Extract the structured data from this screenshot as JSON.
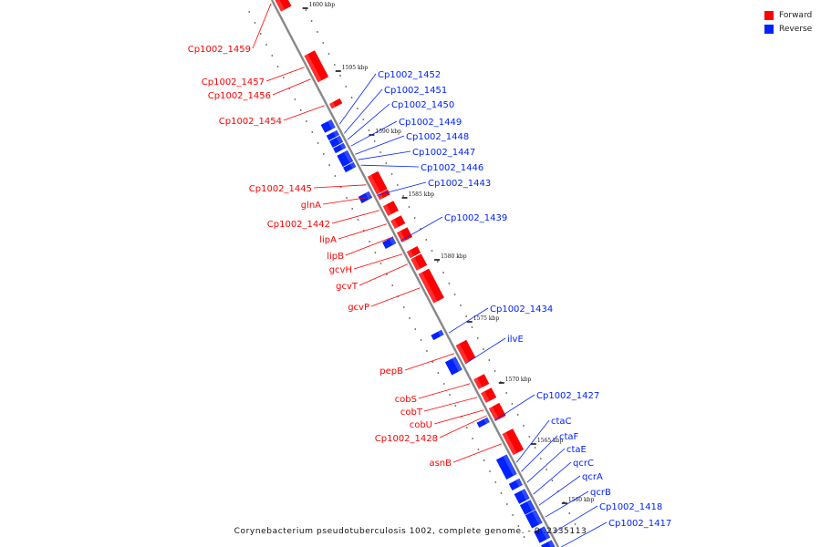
{
  "colors": {
    "forward": "#ff0000",
    "reverse": "#0022ff",
    "axis": "#888888"
  },
  "legend": [
    {
      "label": "Forward",
      "color": "#ff0000"
    },
    {
      "label": "Reverse",
      "color": "#0022ff"
    }
  ],
  "footer": "Corynebacterium pseudotuberculosis 1002, complete genome. - 0..2335113",
  "ticks": [
    "1600 kbp",
    "1595 kbp",
    "1590 kbp",
    "1585 kbp",
    "1580 kbp",
    "1575 kbp",
    "1570 kbp",
    "1565 kbp",
    "1560 kbp"
  ],
  "forward_genes": [
    "Cp1002_1459",
    "Cp1002_1457",
    "Cp1002_1456",
    "Cp1002_1454",
    "Cp1002_1445",
    "glnA",
    "Cp1002_1442",
    "lipA",
    "lipB",
    "gcvH",
    "gcvT",
    "gcvP",
    "pepB",
    "cobS",
    "cobT",
    "cobU",
    "Cp1002_1428",
    "asnB"
  ],
  "reverse_genes": [
    "Cp1002_1452",
    "Cp1002_1451",
    "Cp1002_1450",
    "Cp1002_1449",
    "Cp1002_1448",
    "Cp1002_1447",
    "Cp1002_1446",
    "Cp1002_1443",
    "Cp1002_1439",
    "Cp1002_1434",
    "ilvE",
    "Cp1002_1427",
    "ctaC",
    "ctaF",
    "ctaE",
    "qcrC",
    "qcrA",
    "qcrB",
    "Cp1002_1418",
    "Cp1002_1417"
  ]
}
